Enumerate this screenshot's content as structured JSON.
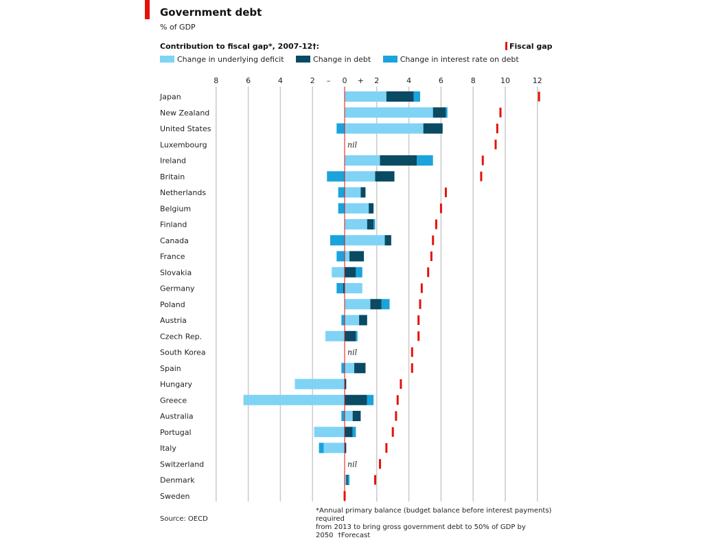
{
  "header": {
    "title": "Government debt",
    "subtitle": "% of GDP",
    "legend_title": "Contribution to fiscal gap*, 2007-12†:",
    "fiscal_gap_label": "Fiscal gap"
  },
  "footer": {
    "source": "Source: OECD",
    "footnote_line1": "*Annual primary balance (budget balance before interest payments) required",
    "footnote_line2": "from 2013 to bring gross government debt to 50% of GDP by 2050",
    "forecast_note": "†Forecast"
  },
  "colors": {
    "deficit": "#7fd3f5",
    "debt": "#0a4a63",
    "interest": "#1ba3dc",
    "fiscal_gap": "#e3120b",
    "gridline": "#c9c9c9",
    "zero_line": "#e3120b"
  },
  "chart_data": {
    "type": "bar",
    "orientation": "horizontal",
    "stacked": true,
    "xlim": [
      -8,
      12
    ],
    "x_ticks": [
      {
        "value": -8,
        "label": "8"
      },
      {
        "value": -6,
        "label": "6"
      },
      {
        "value": -4,
        "label": "4"
      },
      {
        "value": -2,
        "label": "2"
      },
      {
        "value": -1,
        "label": "–"
      },
      {
        "value": 0,
        "label": "0"
      },
      {
        "value": 1,
        "label": "+"
      },
      {
        "value": 2,
        "label": "2"
      },
      {
        "value": 4,
        "label": "4"
      },
      {
        "value": 6,
        "label": "6"
      },
      {
        "value": 8,
        "label": "8"
      },
      {
        "value": 10,
        "label": "10"
      },
      {
        "value": 12,
        "label": "12"
      }
    ],
    "legend_placement": "top",
    "series": [
      {
        "name": "Change in underlying deficit",
        "key": "deficit"
      },
      {
        "name": "Change in debt",
        "key": "debt"
      },
      {
        "name": "Change in interest rate on debt",
        "key": "interest"
      }
    ],
    "nil_label": "nil",
    "countries": [
      {
        "name": "Japan",
        "deficit": 2.6,
        "debt": 1.7,
        "interest": 0.4,
        "fiscal_gap": 12.1
      },
      {
        "name": "New Zealand",
        "deficit": 5.5,
        "debt": 0.8,
        "interest": 0.1,
        "fiscal_gap": 9.7
      },
      {
        "name": "United States",
        "deficit": 4.9,
        "debt": 1.2,
        "interest": -0.5,
        "fiscal_gap": 9.5
      },
      {
        "name": "Luxembourg",
        "deficit": 0,
        "debt": 0,
        "interest": 0,
        "fiscal_gap": 9.4,
        "nil": true
      },
      {
        "name": "Ireland",
        "deficit": 2.2,
        "debt": 2.3,
        "interest": 1.0,
        "fiscal_gap": 8.6
      },
      {
        "name": "Britain",
        "deficit": 1.9,
        "debt": 1.2,
        "interest": -1.1,
        "fiscal_gap": 8.5
      },
      {
        "name": "Netherlands",
        "deficit": 1.0,
        "debt": 0.3,
        "interest": -0.4,
        "fiscal_gap": 6.3
      },
      {
        "name": "Belgium",
        "deficit": 1.5,
        "debt": 0.3,
        "interest": -0.4,
        "fiscal_gap": 6.0
      },
      {
        "name": "Finland",
        "deficit": 1.4,
        "debt": 0.4,
        "interest": 0.1,
        "fiscal_gap": 5.7
      },
      {
        "name": "Canada",
        "deficit": 2.5,
        "debt": 0.4,
        "interest": -0.9,
        "fiscal_gap": 5.5
      },
      {
        "name": "France",
        "deficit": 0.3,
        "debt": 0.9,
        "interest": -0.5,
        "fiscal_gap": 5.4
      },
      {
        "name": "Slovakia",
        "deficit": -0.8,
        "debt": 0.7,
        "interest": 0.4,
        "fiscal_gap": 5.2
      },
      {
        "name": "Germany",
        "deficit": 1.1,
        "debt": -0.1,
        "interest": -0.4,
        "fiscal_gap": 4.8
      },
      {
        "name": "Poland",
        "deficit": 1.6,
        "debt": 0.7,
        "interest": 0.5,
        "fiscal_gap": 4.7
      },
      {
        "name": "Austria",
        "deficit": 0.9,
        "debt": 0.5,
        "interest": -0.2,
        "fiscal_gap": 4.6
      },
      {
        "name": "Czech Rep.",
        "deficit": -1.2,
        "debt": 0.7,
        "interest": 0.1,
        "fiscal_gap": 4.6
      },
      {
        "name": "South Korea",
        "deficit": 0,
        "debt": 0,
        "interest": 0,
        "fiscal_gap": 4.2,
        "nil": true
      },
      {
        "name": "Spain",
        "deficit": 0.6,
        "debt": 0.7,
        "interest": -0.2,
        "fiscal_gap": 4.2
      },
      {
        "name": "Hungary",
        "deficit": -3.1,
        "debt": 0.1,
        "interest": 0.0,
        "fiscal_gap": 3.5
      },
      {
        "name": "Greece",
        "deficit": -6.3,
        "debt": 1.4,
        "interest": 0.4,
        "fiscal_gap": 3.3
      },
      {
        "name": "Australia",
        "deficit": 0.5,
        "debt": 0.5,
        "interest": -0.2,
        "fiscal_gap": 3.2
      },
      {
        "name": "Portugal",
        "deficit": -1.9,
        "debt": 0.5,
        "interest": 0.2,
        "fiscal_gap": 3.0
      },
      {
        "name": "Italy",
        "deficit": -1.3,
        "debt": 0.1,
        "interest": -0.3,
        "fiscal_gap": 2.6
      },
      {
        "name": "Switzerland",
        "deficit": 0,
        "debt": 0,
        "interest": 0,
        "fiscal_gap": 2.2,
        "nil": true
      },
      {
        "name": "Denmark",
        "deficit": 0.1,
        "debt": 0.1,
        "interest": 0.1,
        "fiscal_gap": 1.9
      },
      {
        "name": "Sweden",
        "deficit": 0,
        "debt": 0,
        "interest": 0,
        "fiscal_gap": 0.0
      }
    ]
  }
}
